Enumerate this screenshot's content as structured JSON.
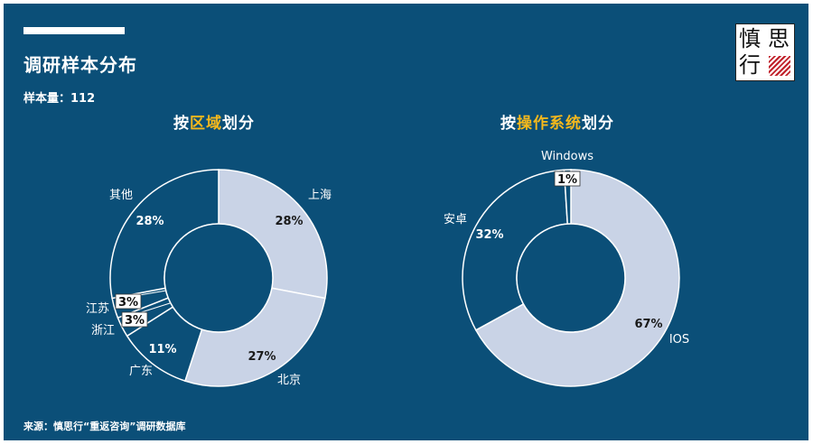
{
  "header": {
    "title": "调研样本分布",
    "sample_size": "样本量：112",
    "logo_chars": [
      "慎",
      "思",
      "行"
    ]
  },
  "footer": {
    "source": "来源：慎思行“重返咨询”调研数据库"
  },
  "colors": {
    "background": "#0b4f78",
    "slice_fill": "#c9d3e6",
    "slice_stroke": "#ffffff",
    "highlight": "#f5b81c"
  },
  "chart_data": [
    {
      "type": "pie",
      "donut": true,
      "title_prefix": "按",
      "title_highlight": "区域",
      "title_suffix": "划分",
      "slices": [
        {
          "label": "上海",
          "pct_label": "28%",
          "value": 28
        },
        {
          "label": "北京",
          "pct_label": "27%",
          "value": 27
        },
        {
          "label": "广东",
          "pct_label": "11%",
          "value": 11
        },
        {
          "label": "浙江",
          "pct_label": "3%",
          "value": 3
        },
        {
          "label": "江苏",
          "pct_label": "3%",
          "value": 3
        },
        {
          "label": "其他",
          "pct_label": "28%",
          "value": 28
        }
      ]
    },
    {
      "type": "pie",
      "donut": true,
      "title_prefix": "按",
      "title_highlight": "操作系统",
      "title_suffix": "划分",
      "slices": [
        {
          "label": "IOS",
          "pct_label": "67%",
          "value": 67
        },
        {
          "label": "安卓",
          "pct_label": "32%",
          "value": 32
        },
        {
          "label": "Windows",
          "pct_label": "1%",
          "value": 1
        }
      ]
    }
  ]
}
